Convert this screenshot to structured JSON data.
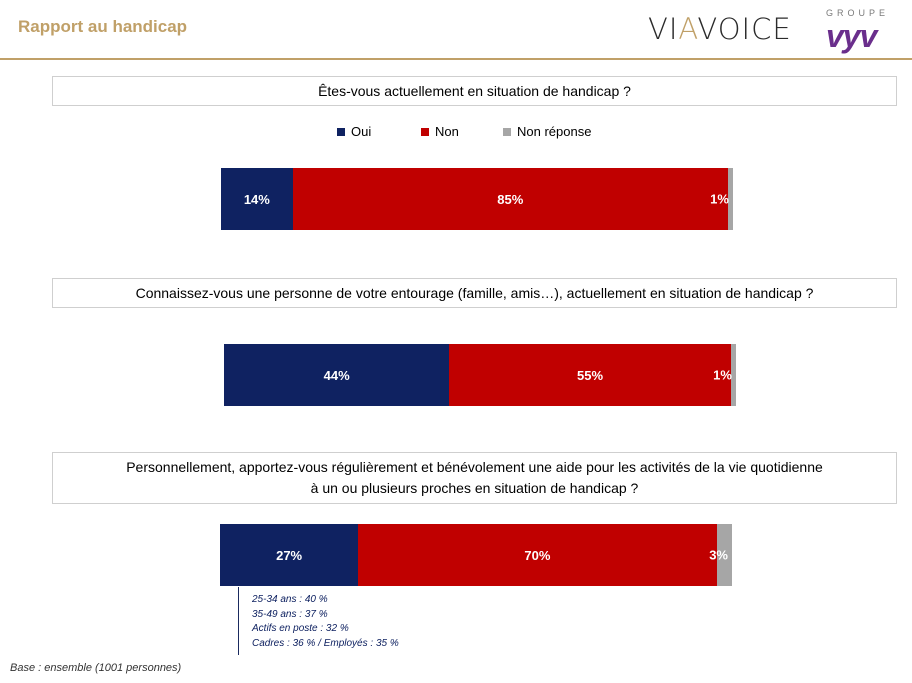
{
  "header": {
    "title": "Rapport au handicap",
    "logo_viavoice_1": "VI",
    "logo_viavoice_accent": "A",
    "logo_viavoice_2": "VOICE",
    "logo_groupe": "GROUPE",
    "logo_vyv": "vyv"
  },
  "legend": [
    {
      "label": "Oui",
      "color": "#0f2261"
    },
    {
      "label": "Non",
      "color": "#c00000"
    },
    {
      "label": "Non réponse",
      "color": "#a6a6a6"
    }
  ],
  "chart_data": [
    {
      "type": "bar",
      "orientation": "horizontal-stacked-100",
      "title": "Êtes-vous actuellement en situation de handicap ?",
      "series": [
        {
          "name": "Oui",
          "values": [
            14
          ],
          "label": "14%"
        },
        {
          "name": "Non",
          "values": [
            85
          ],
          "label": "85%"
        },
        {
          "name": "Non réponse",
          "values": [
            1
          ],
          "label": "1%"
        }
      ]
    },
    {
      "type": "bar",
      "orientation": "horizontal-stacked-100",
      "title": "Connaissez-vous une personne de votre entourage (famille, amis…), actuellement en situation de handicap ?",
      "series": [
        {
          "name": "Oui",
          "values": [
            44
          ],
          "label": "44%"
        },
        {
          "name": "Non",
          "values": [
            55
          ],
          "label": "55%"
        },
        {
          "name": "Non réponse",
          "values": [
            1
          ],
          "label": "1%"
        }
      ]
    },
    {
      "type": "bar",
      "orientation": "horizontal-stacked-100",
      "title": "Personnellement, apportez-vous régulièrement et bénévolement une aide pour les activités de la vie quotidienne à un ou plusieurs proches en situation de handicap ?",
      "series": [
        {
          "name": "Oui",
          "values": [
            27
          ],
          "label": "27%"
        },
        {
          "name": "Non",
          "values": [
            70
          ],
          "label": "70%"
        },
        {
          "name": "Non réponse",
          "values": [
            3
          ],
          "label": "3%"
        }
      ],
      "annotations": [
        "25-34 ans : 40 %",
        "35-49 ans : 37 %",
        "Actifs en poste : 32 %",
        "Cadres : 36 %  / Employés : 35 %"
      ]
    }
  ],
  "questions": {
    "q1": "Êtes-vous actuellement en situation de handicap ?",
    "q2": "Connaissez-vous une personne de votre entourage (famille, amis…), actuellement en situation de handicap ?",
    "q3_line1": "Personnellement, apportez-vous régulièrement et bénévolement une aide pour les activités de la vie quotidienne",
    "q3_line2": "à un ou plusieurs proches en situation de handicap ?"
  },
  "footnote": "Base : ensemble (1001 personnes)"
}
